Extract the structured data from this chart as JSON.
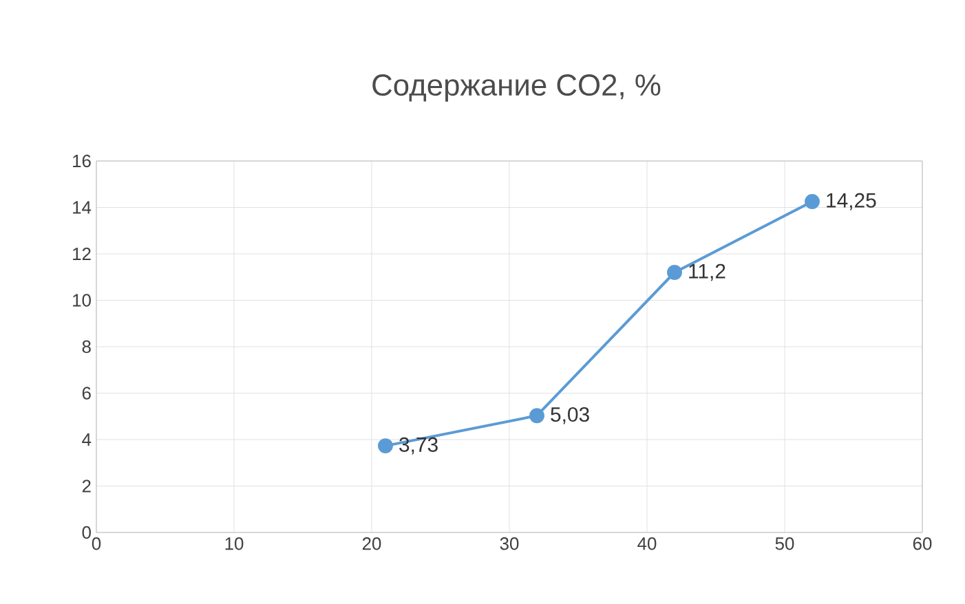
{
  "chart_data": {
    "type": "line",
    "title": "Содержание CO2, %",
    "x": [
      21,
      32,
      42,
      52
    ],
    "series": [
      {
        "color": "#5b9bd5",
        "values": [
          3.73,
          5.03,
          11.2,
          14.25
        ],
        "value_labels": [
          "3,73",
          "5,03",
          "11,2",
          "14,25"
        ]
      }
    ],
    "xlim": [
      0,
      60
    ],
    "xticks": [
      0,
      10,
      20,
      30,
      40,
      50,
      60
    ],
    "ylim": [
      0,
      16
    ],
    "yticks": [
      0,
      2,
      4,
      6,
      8,
      10,
      12,
      14,
      16
    ],
    "grid": true,
    "marker": "circle",
    "line_style": "solid"
  }
}
